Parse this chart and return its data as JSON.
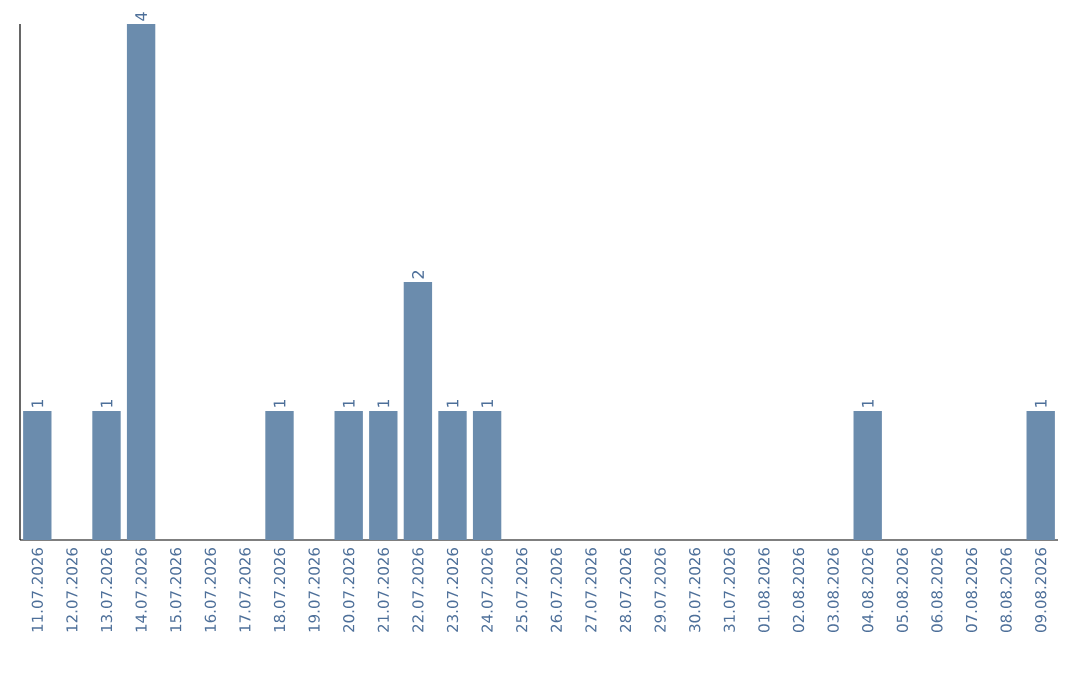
{
  "chart_data": {
    "type": "bar",
    "categories": [
      "11.07.2026",
      "12.07.2026",
      "13.07.2026",
      "14.07.2026",
      "15.07.2026",
      "16.07.2026",
      "17.07.2026",
      "18.07.2026",
      "19.07.2026",
      "20.07.2026",
      "21.07.2026",
      "22.07.2026",
      "23.07.2026",
      "24.07.2026",
      "25.07.2026",
      "26.07.2026",
      "27.07.2026",
      "28.07.2026",
      "29.07.2026",
      "30.07.2026",
      "31.07.2026",
      "01.08.2026",
      "02.08.2026",
      "03.08.2026",
      "04.08.2026",
      "05.08.2026",
      "06.08.2026",
      "07.08.2026",
      "08.08.2026",
      "09.08.2026"
    ],
    "values": [
      1,
      0,
      1,
      4,
      0,
      0,
      0,
      1,
      0,
      1,
      1,
      2,
      1,
      1,
      0,
      0,
      0,
      0,
      0,
      0,
      0,
      0,
      0,
      0,
      1,
      0,
      0,
      0,
      0,
      1
    ],
    "value_labels": [
      "1",
      null,
      "1",
      "4",
      null,
      null,
      null,
      "1",
      null,
      "1",
      "1",
      "2",
      "1",
      "1",
      null,
      null,
      null,
      null,
      null,
      null,
      null,
      null,
      null,
      null,
      "1",
      null,
      null,
      null,
      null,
      "1"
    ],
    "color": "#6b8cad",
    "grid": false
  }
}
